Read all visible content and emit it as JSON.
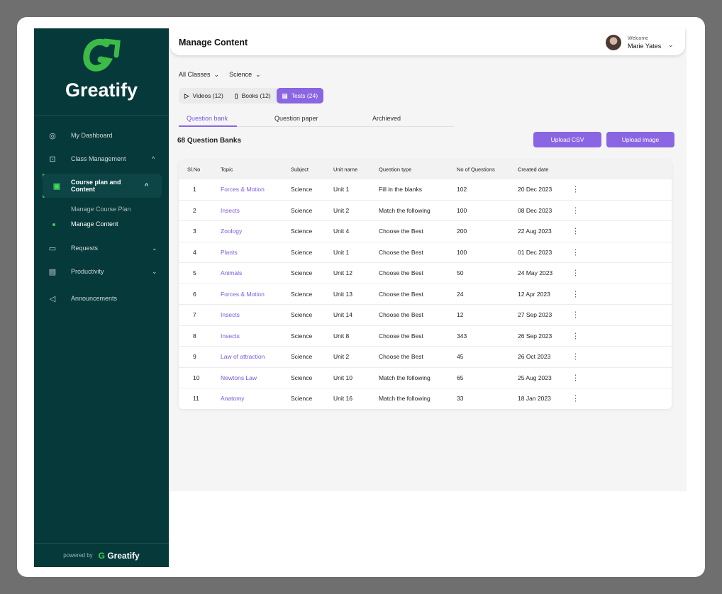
{
  "brand": {
    "name": "Greatify",
    "powered_by": "powered by",
    "accent": "#8b66e3",
    "sidebar_bg": "#06393a",
    "logo_green": "#3dbb49"
  },
  "sidebar": {
    "items": [
      {
        "label": "My Dashboard",
        "icon": "dashboard-icon",
        "chevron": ""
      },
      {
        "label": "Class Management",
        "icon": "class-icon",
        "chevron": "^"
      },
      {
        "label": "Course plan and Content",
        "icon": "book-icon",
        "chevron": "^",
        "active": true
      },
      {
        "label": "Requests",
        "icon": "chat-icon",
        "chevron": "⌄"
      },
      {
        "label": "Productivity",
        "icon": "note-icon",
        "chevron": "⌄"
      },
      {
        "label": "Announcements",
        "icon": "megaphone-icon",
        "chevron": ""
      }
    ],
    "sub_items": [
      "Manage Course Plan",
      "Manage Content"
    ]
  },
  "header": {
    "title": "Manage Content",
    "welcome": "Welcome",
    "user": "Marie Yates"
  },
  "filters": {
    "class": "All Classes",
    "subject": "Science"
  },
  "segments": [
    "Videos (12)",
    "Books (12)",
    "Tests (24)"
  ],
  "tabs": [
    "Question bank",
    "Question paper",
    "Archieved"
  ],
  "count": "68 Question Banks",
  "buttons": {
    "csv": "Upload CSV",
    "image": "Upload image"
  },
  "table": {
    "headers": [
      "Sl.No",
      "Topic",
      "Subject",
      "Unit name",
      "Question type",
      "No of Questions",
      "Created date"
    ],
    "rows": [
      [
        "1",
        "Forces & Motion",
        "Science",
        "Unit 1",
        "Fill in the blanks",
        "102",
        "20 Dec 2023"
      ],
      [
        "2",
        "Insects",
        "Science",
        "Unit 2",
        "Match the following",
        "100",
        "08 Dec 2023"
      ],
      [
        "3",
        "Zoology",
        "Science",
        "Unit 4",
        "Choose the Best",
        "200",
        "22 Aug 2023"
      ],
      [
        "4",
        "Plants",
        "Science",
        "Unit 1",
        "Choose the Best",
        "100",
        "01 Dec 2023"
      ],
      [
        "5",
        "Animals",
        "Science",
        "Unit 12",
        "Choose the Best",
        "50",
        "24 May 2023"
      ],
      [
        "6",
        "Forces & Motion",
        "Science",
        "Unit 13",
        "Choose the Best",
        "24",
        "12 Apr 2023"
      ],
      [
        "7",
        "Insects",
        "Science",
        "Unit 14",
        "Choose the Best",
        "12",
        "27 Sep 2023"
      ],
      [
        "8",
        "Insects",
        "Science",
        "Unit 8",
        "Choose the Best",
        "343",
        "26 Sep 2023"
      ],
      [
        "9",
        "Law of attraction",
        "Science",
        "Unit 2",
        "Choose the Best",
        "45",
        "26 Oct 2023"
      ],
      [
        "10",
        "Newtons Law",
        "Science",
        "Unit 10",
        "Match the following",
        "65",
        "25 Aug 2023"
      ],
      [
        "11",
        "Anatomy",
        "Science",
        "Unit 16",
        "Match the following",
        "33",
        "18 Jan 2023"
      ]
    ]
  }
}
